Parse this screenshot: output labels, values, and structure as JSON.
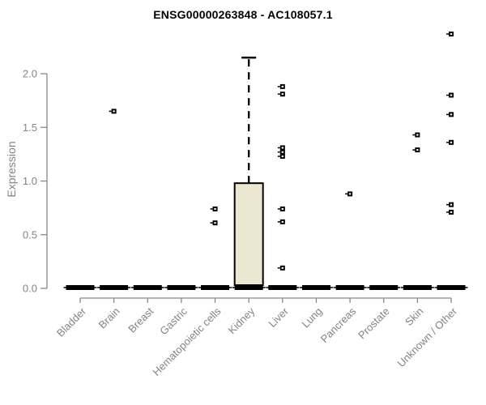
{
  "chart_data": {
    "type": "box",
    "title": "ENSG00000263848 - AC108057.1",
    "xlabel": "",
    "ylabel": "Expression",
    "ylim": [
      0,
      2.4
    ],
    "ytick_labels": [
      "0.0",
      "0.5",
      "1.0",
      "1.5",
      "2.0"
    ],
    "ytick_values": [
      0.0,
      0.5,
      1.0,
      1.5,
      2.0
    ],
    "grid": false,
    "legend": "none",
    "categories": [
      "Bladder",
      "Brain",
      "Breast",
      "Gastric",
      "Hematopoietic cells",
      "Kidney",
      "Liver",
      "Lung",
      "Pancreas",
      "Prostate",
      "Skin",
      "Unknown / Other"
    ],
    "series": [
      {
        "name": "Bladder",
        "q1": 0,
        "median": 0,
        "q3": 0,
        "whisker_low": 0,
        "whisker_high": 0,
        "outliers": []
      },
      {
        "name": "Brain",
        "q1": 0,
        "median": 0,
        "q3": 0,
        "whisker_low": 0,
        "whisker_high": 0,
        "outliers": [
          1.65
        ]
      },
      {
        "name": "Breast",
        "q1": 0,
        "median": 0,
        "q3": 0,
        "whisker_low": 0,
        "whisker_high": 0,
        "outliers": []
      },
      {
        "name": "Gastric",
        "q1": 0,
        "median": 0,
        "q3": 0,
        "whisker_low": 0,
        "whisker_high": 0,
        "outliers": []
      },
      {
        "name": "Hematopoietic cells",
        "q1": 0,
        "median": 0,
        "q3": 0,
        "whisker_low": 0,
        "whisker_high": 0,
        "outliers": [
          0.74,
          0.61
        ]
      },
      {
        "name": "Kidney",
        "q1": 0,
        "median": 0,
        "q3": 0.98,
        "whisker_low": 0,
        "whisker_high": 2.15,
        "outliers": []
      },
      {
        "name": "Liver",
        "q1": 0,
        "median": 0,
        "q3": 0,
        "whisker_low": 0,
        "whisker_high": 0,
        "outliers": [
          1.88,
          1.81,
          1.31,
          1.27,
          1.23,
          0.74,
          0.62,
          0.19
        ]
      },
      {
        "name": "Lung",
        "q1": 0,
        "median": 0,
        "q3": 0,
        "whisker_low": 0,
        "whisker_high": 0,
        "outliers": []
      },
      {
        "name": "Pancreas",
        "q1": 0,
        "median": 0,
        "q3": 0,
        "whisker_low": 0,
        "whisker_high": 0,
        "outliers": [
          0.88
        ]
      },
      {
        "name": "Prostate",
        "q1": 0,
        "median": 0,
        "q3": 0,
        "whisker_low": 0,
        "whisker_high": 0,
        "outliers": []
      },
      {
        "name": "Skin",
        "q1": 0,
        "median": 0,
        "q3": 0,
        "whisker_low": 0,
        "whisker_high": 0,
        "outliers": [
          1.43,
          1.29
        ]
      },
      {
        "name": "Unknown / Other",
        "q1": 0,
        "median": 0,
        "q3": 0,
        "whisker_low": 0,
        "whisker_high": 0,
        "outliers": [
          2.37,
          1.8,
          1.62,
          1.36,
          0.78,
          0.71
        ]
      }
    ],
    "colors": {
      "title": "#000000",
      "axis": "#888888",
      "tick_label": "#848484",
      "box_fill": "#ece7d0",
      "box_stroke": "#000000",
      "outlier": "#000000",
      "outlier_center": "#ffffff",
      "background": "#ffffff"
    }
  }
}
